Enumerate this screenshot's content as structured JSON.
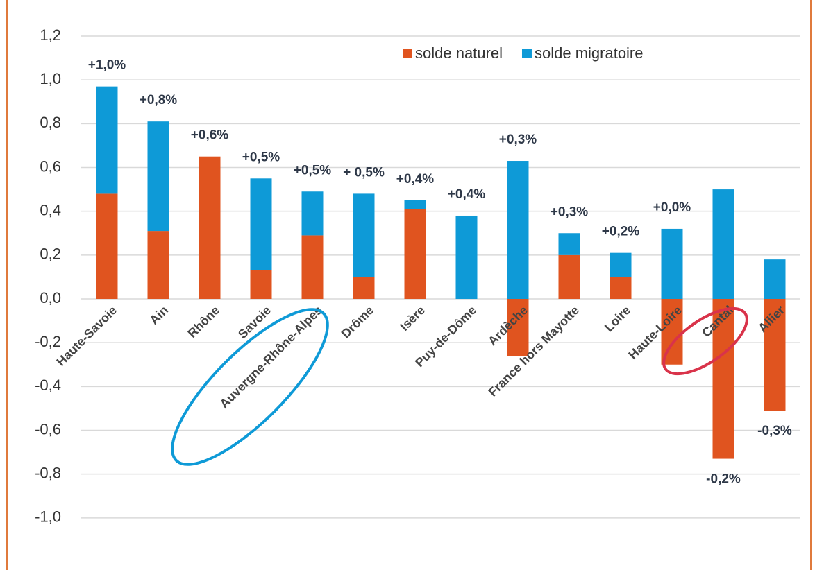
{
  "chart_data": {
    "type": "bar",
    "stacked": true,
    "categories": [
      "Haute-Savoie",
      "Ain",
      "Rhône",
      "Savoie",
      "Auvergne-Rhône-Alpes",
      "Drôme",
      "Isère",
      "Puy-de-Dôme",
      "Ardèche",
      "France hors Mayotte",
      "Loire",
      "Haute-Loire",
      "Cantal",
      "Allier"
    ],
    "series": [
      {
        "name": "solde naturel",
        "color": "#e0541f",
        "values": [
          0.48,
          0.31,
          0.65,
          0.13,
          0.29,
          0.1,
          0.41,
          0,
          -0.26,
          0.2,
          0.1,
          -0.3,
          -0.73,
          -0.51
        ]
      },
      {
        "name": "solde migratoire",
        "color": "#0e9ad7",
        "values": [
          0.49,
          0.5,
          0,
          0.42,
          0.2,
          0.38,
          0.04,
          0.38,
          0.63,
          0.1,
          0.11,
          0.32,
          0.5,
          0.18
        ]
      }
    ],
    "annotations": [
      "+1,0%",
      "+0,8%",
      "+0,6%",
      "+0,5%",
      "+0,5%",
      "+ 0,5%",
      "+0,4%",
      "+0,4%",
      "+0,3%",
      "+0,3%",
      "+0,2%",
      "+0,0%",
      "-0,2%",
      "-0,3%"
    ],
    "ylim": [
      -1.2,
      1.2
    ],
    "yticks": [
      {
        "value": 1.2,
        "label": "1,2"
      },
      {
        "value": 1.0,
        "label": "1,0"
      },
      {
        "value": 0.8,
        "label": "0,8"
      },
      {
        "value": 0.6,
        "label": "0,6"
      },
      {
        "value": 0.4,
        "label": "0,4"
      },
      {
        "value": 0.2,
        "label": "0,2"
      },
      {
        "value": 0,
        "label": "0,0"
      },
      {
        "value": -0.2,
        "label": "-0,2"
      },
      {
        "value": -0.4,
        "label": "-0,4"
      },
      {
        "value": -0.6,
        "label": "-0,6"
      },
      {
        "value": -0.8,
        "label": "-0,8"
      },
      {
        "value": -1.0,
        "label": "-1,0"
      }
    ],
    "grid": true,
    "legend": "top-right"
  }
}
